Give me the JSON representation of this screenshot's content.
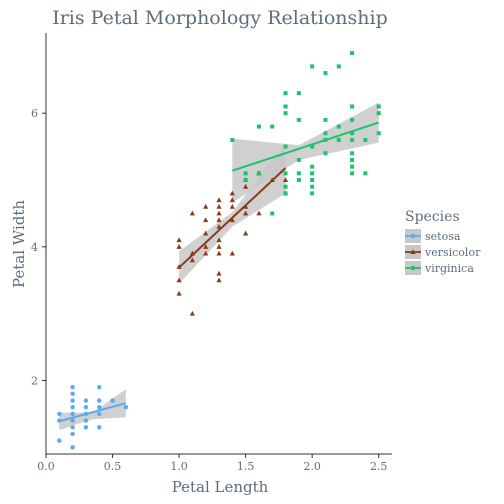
{
  "chart_data": {
    "type": "scatter",
    "title": "Iris Petal Morphology Relationship",
    "xlabel": "Petal Length",
    "ylabel": "Petal Width",
    "xlim": [
      0.0,
      2.6
    ],
    "ylim": [
      0.9,
      7.2
    ],
    "xticks": [
      0.0,
      0.5,
      1.0,
      1.5,
      2.0,
      2.5
    ],
    "xtick_labels": [
      "0.0",
      "0.5",
      "1.0",
      "1.5",
      "2.0",
      "2.5"
    ],
    "yticks": [
      2,
      4,
      6
    ],
    "ytick_labels": [
      "2",
      "4",
      "6"
    ],
    "grid": false,
    "legend": {
      "title": "Species",
      "placement": "right"
    },
    "colors": {
      "setosa": "#5aaaf0",
      "versicolor": "#8b3a1a",
      "virginica": "#1ec36b",
      "band": "#c8c8c8"
    },
    "series": [
      {
        "name": "setosa",
        "marker": "circle",
        "points": [
          [
            0.1,
            1.1
          ],
          [
            0.1,
            1.4
          ],
          [
            0.1,
            1.5
          ],
          [
            0.2,
            1.2
          ],
          [
            0.2,
            1.3
          ],
          [
            0.2,
            1.4
          ],
          [
            0.2,
            1.5
          ],
          [
            0.2,
            1.6
          ],
          [
            0.2,
            1.7
          ],
          [
            0.2,
            1.9
          ],
          [
            0.3,
            1.3
          ],
          [
            0.3,
            1.4
          ],
          [
            0.3,
            1.5
          ],
          [
            0.3,
            1.7
          ],
          [
            0.4,
            1.3
          ],
          [
            0.4,
            1.5
          ],
          [
            0.4,
            1.6
          ],
          [
            0.4,
            1.7
          ],
          [
            0.4,
            1.9
          ],
          [
            0.5,
            1.7
          ],
          [
            0.6,
            1.6
          ],
          [
            0.2,
            1.0
          ],
          [
            0.2,
            1.8
          ],
          [
            0.3,
            1.6
          ]
        ],
        "fit": {
          "x": [
            0.1,
            0.6
          ],
          "y": [
            1.39,
            1.66
          ]
        },
        "band": {
          "x": [
            0.1,
            0.35,
            0.6
          ],
          "upper": [
            1.52,
            1.52,
            1.87
          ],
          "lower": [
            1.26,
            1.42,
            1.45
          ]
        }
      },
      {
        "name": "versicolor",
        "marker": "triangle",
        "points": [
          [
            1.0,
            3.3
          ],
          [
            1.0,
            3.5
          ],
          [
            1.0,
            3.7
          ],
          [
            1.0,
            4.0
          ],
          [
            1.0,
            4.1
          ],
          [
            1.1,
            3.0
          ],
          [
            1.1,
            3.8
          ],
          [
            1.1,
            3.9
          ],
          [
            1.2,
            3.9
          ],
          [
            1.2,
            4.0
          ],
          [
            1.2,
            4.2
          ],
          [
            1.2,
            4.4
          ],
          [
            1.3,
            3.5
          ],
          [
            1.3,
            3.6
          ],
          [
            1.3,
            3.9
          ],
          [
            1.3,
            4.0
          ],
          [
            1.3,
            4.1
          ],
          [
            1.3,
            4.3
          ],
          [
            1.3,
            4.4
          ],
          [
            1.3,
            4.5
          ],
          [
            1.3,
            4.6
          ],
          [
            1.3,
            4.7
          ],
          [
            1.2,
            4.6
          ],
          [
            1.1,
            4.5
          ],
          [
            1.4,
            3.9
          ],
          [
            1.4,
            4.4
          ],
          [
            1.4,
            4.6
          ],
          [
            1.4,
            4.7
          ],
          [
            1.4,
            4.8
          ],
          [
            1.5,
            4.5
          ],
          [
            1.5,
            4.6
          ],
          [
            1.5,
            4.9
          ],
          [
            1.5,
            5.0
          ],
          [
            1.6,
            4.5
          ],
          [
            1.6,
            5.1
          ],
          [
            1.7,
            5.0
          ],
          [
            1.8,
            4.8
          ],
          [
            1.8,
            5.0
          ],
          [
            1.5,
            4.2
          ]
        ],
        "fit": {
          "x": [
            1.0,
            1.8
          ],
          "y": [
            3.69,
            5.18
          ]
        },
        "band": {
          "x": [
            1.0,
            1.4,
            1.8
          ],
          "upper": [
            3.93,
            4.52,
            5.56
          ],
          "lower": [
            3.45,
            4.3,
            4.8
          ]
        }
      },
      {
        "name": "virginica",
        "marker": "square",
        "points": [
          [
            1.4,
            5.6
          ],
          [
            1.5,
            5.0
          ],
          [
            1.5,
            5.1
          ],
          [
            1.6,
            5.8
          ],
          [
            1.7,
            4.5
          ],
          [
            1.8,
            4.8
          ],
          [
            1.8,
            4.9
          ],
          [
            1.8,
            5.1
          ],
          [
            1.8,
            5.5
          ],
          [
            1.8,
            6.0
          ],
          [
            1.8,
            6.1
          ],
          [
            1.8,
            6.3
          ],
          [
            1.9,
            5.0
          ],
          [
            1.9,
            5.1
          ],
          [
            1.9,
            5.3
          ],
          [
            1.9,
            6.3
          ],
          [
            2.0,
            4.9
          ],
          [
            2.0,
            5.0
          ],
          [
            2.0,
            5.1
          ],
          [
            2.0,
            5.2
          ],
          [
            2.0,
            5.5
          ],
          [
            2.0,
            6.7
          ],
          [
            2.1,
            5.4
          ],
          [
            2.1,
            5.6
          ],
          [
            2.1,
            5.7
          ],
          [
            2.1,
            6.6
          ],
          [
            2.2,
            5.6
          ],
          [
            2.2,
            5.8
          ],
          [
            2.2,
            6.7
          ],
          [
            2.3,
            5.1
          ],
          [
            2.3,
            5.2
          ],
          [
            2.3,
            5.3
          ],
          [
            2.3,
            5.4
          ],
          [
            2.3,
            5.6
          ],
          [
            2.3,
            5.7
          ],
          [
            2.3,
            6.1
          ],
          [
            2.3,
            6.9
          ],
          [
            2.4,
            5.1
          ],
          [
            2.4,
            5.6
          ],
          [
            2.5,
            5.7
          ],
          [
            2.5,
            6.0
          ],
          [
            2.5,
            6.1
          ],
          [
            1.9,
            5.9
          ],
          [
            2.3,
            5.9
          ],
          [
            2.0,
            4.8
          ],
          [
            1.6,
            5.1
          ],
          [
            1.7,
            5.8
          ],
          [
            2.1,
            5.9
          ]
        ],
        "fit": {
          "x": [
            1.4,
            2.5
          ],
          "y": [
            5.14,
            5.86
          ]
        },
        "band": {
          "x": [
            1.4,
            1.9,
            2.5
          ],
          "upper": [
            5.62,
            5.52,
            6.16
          ],
          "lower": [
            4.66,
            5.3,
            5.56
          ]
        }
      }
    ]
  }
}
